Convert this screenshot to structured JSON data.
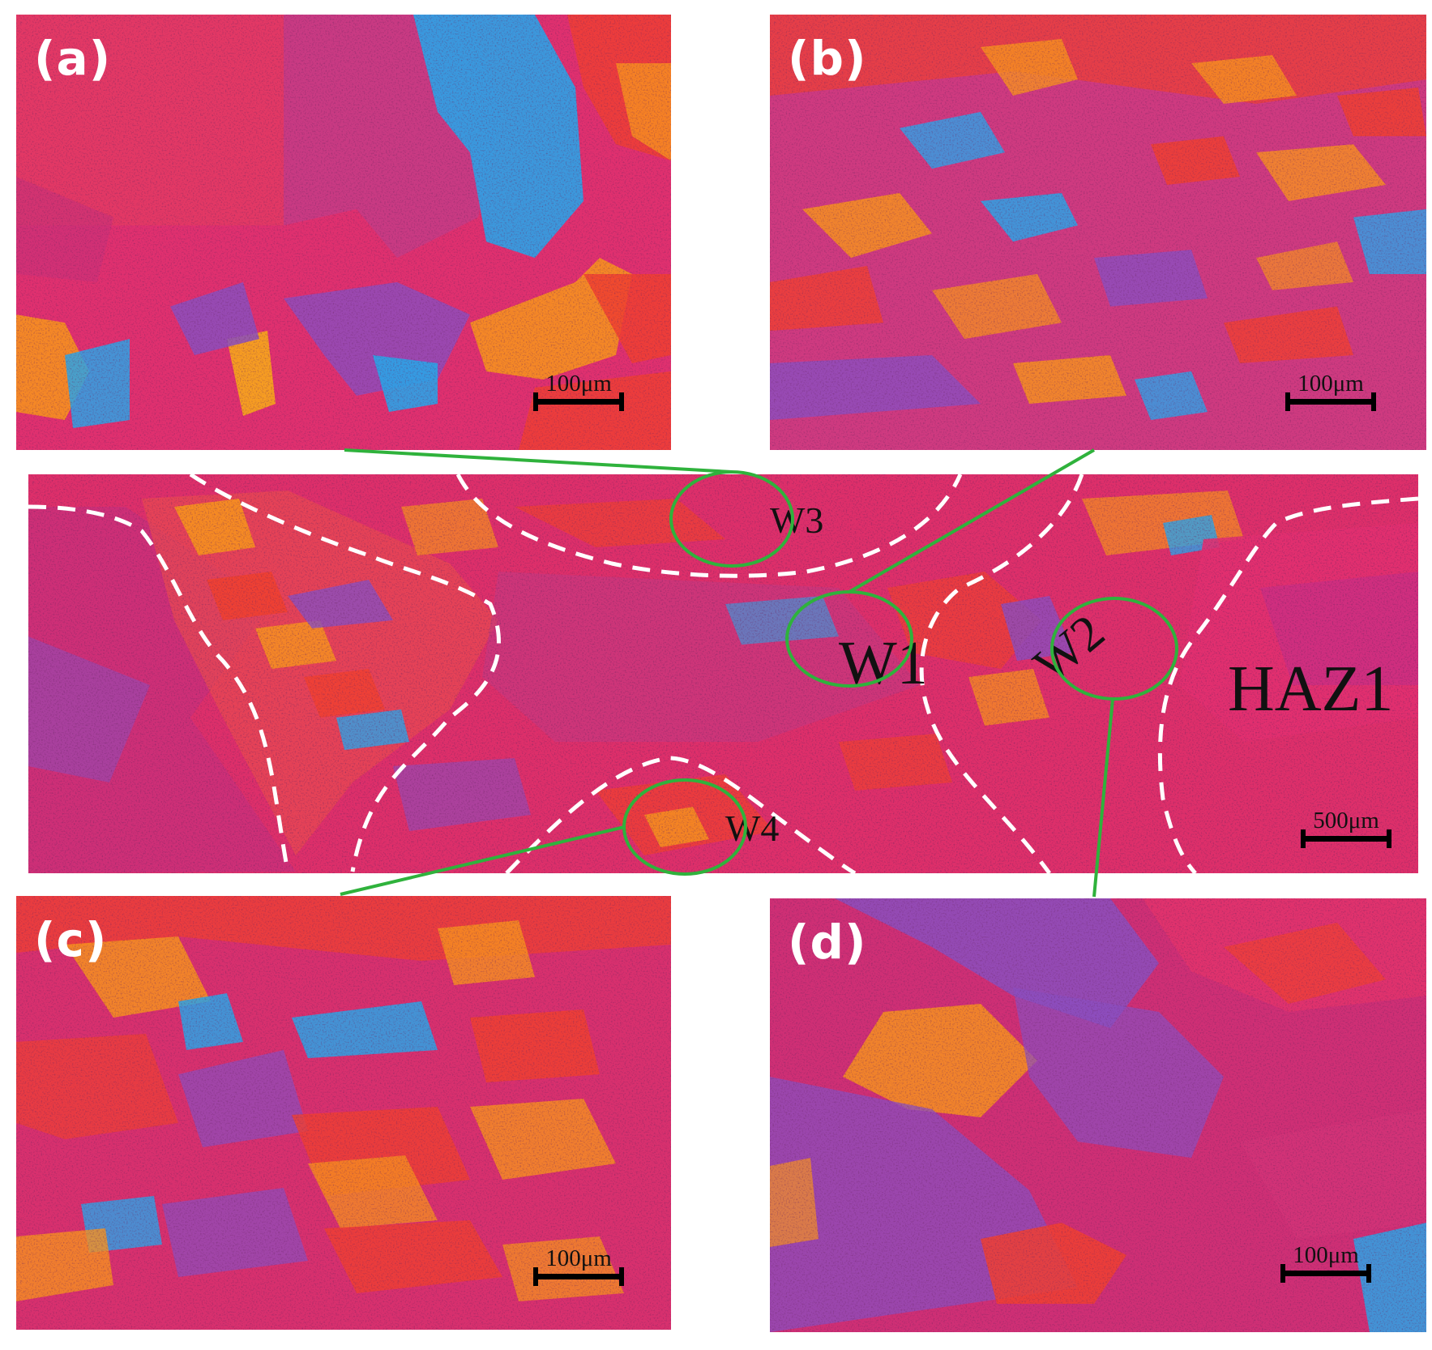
{
  "panels": {
    "a": {
      "label": "(a)",
      "scale": "100μm"
    },
    "b": {
      "label": "(b)",
      "scale": "100μm"
    },
    "c": {
      "label": "(c)",
      "scale": "100μm"
    },
    "d": {
      "label": "(d)",
      "scale": "100μm"
    }
  },
  "main": {
    "zones": {
      "w1": "W1",
      "w2": "W2",
      "w3": "W3",
      "w4": "W4",
      "haz1": "HAZ1"
    },
    "scale": "500μm"
  },
  "colors": {
    "background_magenta": "#e0306f",
    "purple": "#8a4fc0",
    "blue": "#2aa4e8",
    "red": "#f04030",
    "orange": "#f7921e",
    "boundary_dash": "#ffffff",
    "callout_line": "#2fb23c"
  }
}
